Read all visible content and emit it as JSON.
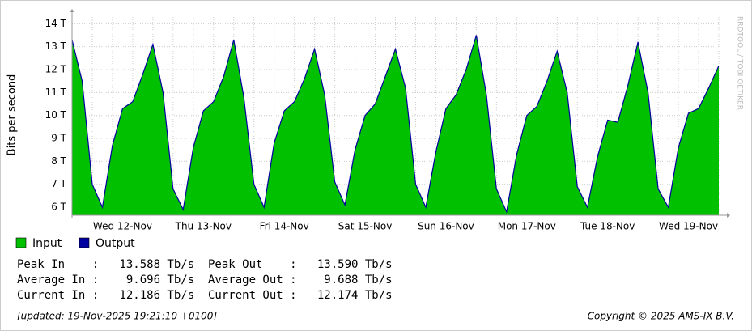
{
  "chart_data": {
    "type": "area",
    "y_label": "Bits per second",
    "watermark": "RRDTOOL / TOBI OETIKER",
    "categories": [
      null,
      null,
      null,
      null,
      null,
      "Wed 12-Nov",
      null,
      null,
      null,
      null,
      null,
      null,
      null,
      "Thu 13-Nov",
      null,
      null,
      null,
      null,
      null,
      null,
      null,
      "Fri 14-Nov",
      null,
      null,
      null,
      null,
      null,
      null,
      null,
      "Sat 15-Nov",
      null,
      null,
      null,
      null,
      null,
      null,
      null,
      "Sun 16-Nov",
      null,
      null,
      null,
      null,
      null,
      null,
      null,
      "Mon 17-Nov",
      null,
      null,
      null,
      null,
      null,
      null,
      null,
      "Tue 18-Nov",
      null,
      null,
      null,
      null,
      null,
      null,
      null,
      "Wed 19-Nov",
      null,
      null,
      null
    ],
    "series": [
      {
        "name": "Input",
        "color": "#00c000",
        "values": [
          13.3,
          11.5,
          7.0,
          6.0,
          8.7,
          10.3,
          10.6,
          11.8,
          13.1,
          11.0,
          6.8,
          5.9,
          8.6,
          10.2,
          10.6,
          11.7,
          13.3,
          10.8,
          7.0,
          6.0,
          8.8,
          10.2,
          10.6,
          11.6,
          12.9,
          10.9,
          7.1,
          6.1,
          8.5,
          10.0,
          10.5,
          11.7,
          12.9,
          11.2,
          7.0,
          6.0,
          8.4,
          10.3,
          10.9,
          12.0,
          13.5,
          10.9,
          6.8,
          5.8,
          8.3,
          10.0,
          10.4,
          11.5,
          12.8,
          11.0,
          6.9,
          6.0,
          8.2,
          9.8,
          9.7,
          11.3,
          13.2,
          11.0,
          6.8,
          6.0,
          8.6,
          10.1,
          10.3,
          11.2,
          12.19
        ]
      },
      {
        "name": "Output",
        "color": "#0000a0",
        "values": [
          13.3,
          11.5,
          7.0,
          6.0,
          8.7,
          10.3,
          10.6,
          11.8,
          13.1,
          11.0,
          6.8,
          5.9,
          8.6,
          10.2,
          10.6,
          11.7,
          13.3,
          10.8,
          7.0,
          6.0,
          8.8,
          10.2,
          10.6,
          11.6,
          12.9,
          10.9,
          7.1,
          6.1,
          8.5,
          10.0,
          10.5,
          11.7,
          12.9,
          11.2,
          7.0,
          6.0,
          8.4,
          10.3,
          10.9,
          12.0,
          13.5,
          10.9,
          6.8,
          5.8,
          8.3,
          10.0,
          10.4,
          11.5,
          12.8,
          11.0,
          6.9,
          6.0,
          8.2,
          9.8,
          9.7,
          11.3,
          13.2,
          11.0,
          6.8,
          6.0,
          8.6,
          10.1,
          10.3,
          11.2,
          12.17
        ]
      }
    ],
    "ylim": [
      5.65,
      14.4
    ],
    "yticks": [
      {
        "value": 6,
        "label": "6 T"
      },
      {
        "value": 7,
        "label": "7 T"
      },
      {
        "value": 8,
        "label": "8 T"
      },
      {
        "value": 9,
        "label": "9 T"
      },
      {
        "value": 10,
        "label": "10 T"
      },
      {
        "value": 11,
        "label": "11 T"
      },
      {
        "value": 12,
        "label": "12 T"
      },
      {
        "value": 13,
        "label": "13 T"
      },
      {
        "value": 14,
        "label": "14 T"
      }
    ],
    "grid": true,
    "stats": [
      "Peak In    :   13.588 Tb/s  Peak Out    :   13.590 Tb/s",
      "Average In :    9.696 Tb/s  Average Out :    9.688 Tb/s",
      "Current In :   12.186 Tb/s  Current Out :   12.174 Tb/s"
    ],
    "updated": "[updated: 19-Nov-2025 19:21:10 +0100]",
    "copyright": "Copyright © 2025 AMS-IX B.V."
  }
}
